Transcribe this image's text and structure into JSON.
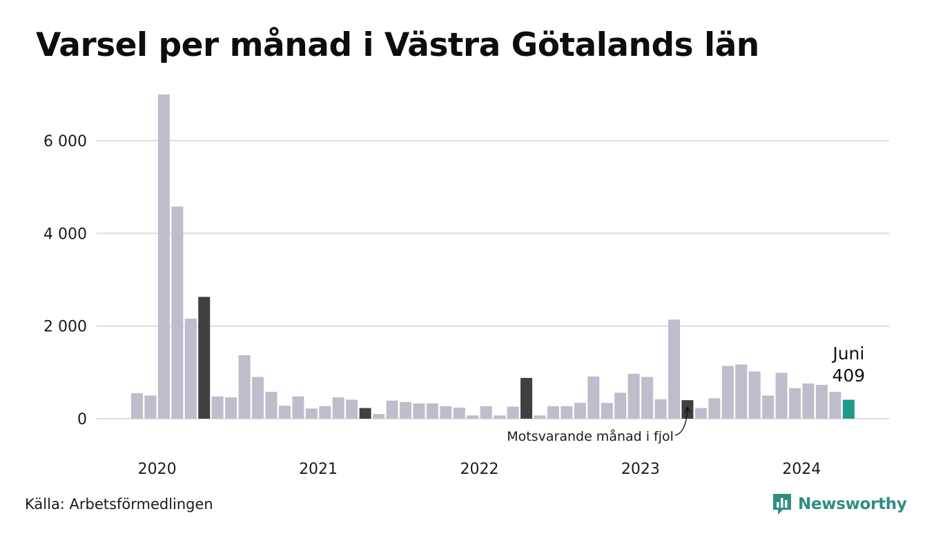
{
  "header": {
    "title": "Varsel per månad i Västra Götalands län"
  },
  "footer": {
    "source": "Källa: Arbetsförmedlingen",
    "brand": "Newsworthy"
  },
  "colors": {
    "bar": "#bfbccb",
    "same_month": "#404040",
    "highlight": "#1f9a8a",
    "grid": "#dcdcdc",
    "brand": "#2e8f80"
  },
  "icons": {
    "brand_logo": "bar-chart-speech-bubble-icon"
  },
  "chart_data": {
    "type": "bar",
    "title": "Varsel per månad i Västra Götalands län",
    "xlabel": "",
    "ylabel": "",
    "ylim": [
      0,
      7000
    ],
    "yticks": [
      0,
      2000,
      4000,
      6000
    ],
    "ytick_labels": [
      "0",
      "2 000",
      "4 000",
      "6 000"
    ],
    "xtick_labels": [
      {
        "label": "2020",
        "index": 1.5
      },
      {
        "label": "2021",
        "index": 13.5
      },
      {
        "label": "2022",
        "index": 25.5
      },
      {
        "label": "2023",
        "index": 37.5
      },
      {
        "label": "2024",
        "index": 49.5
      }
    ],
    "grid": true,
    "months": [
      "2020-01",
      "2020-02",
      "2020-03",
      "2020-04",
      "2020-05",
      "2020-06",
      "2020-07",
      "2020-08",
      "2020-09",
      "2020-10",
      "2020-11",
      "2020-12",
      "2021-01",
      "2021-02",
      "2021-03",
      "2021-04",
      "2021-05",
      "2021-06",
      "2021-07",
      "2021-08",
      "2021-09",
      "2021-10",
      "2021-11",
      "2021-12",
      "2022-01",
      "2022-02",
      "2022-03",
      "2022-04",
      "2022-05",
      "2022-06",
      "2022-07",
      "2022-08",
      "2022-09",
      "2022-10",
      "2022-11",
      "2022-12",
      "2023-01",
      "2023-02",
      "2023-03",
      "2023-04",
      "2023-05",
      "2023-06",
      "2023-07",
      "2023-08",
      "2023-09",
      "2023-10",
      "2023-11",
      "2023-12",
      "2024-01",
      "2024-02",
      "2024-03",
      "2024-04",
      "2024-05",
      "2024-06"
    ],
    "values": [
      550,
      500,
      7000,
      4580,
      2160,
      2630,
      480,
      460,
      1370,
      900,
      580,
      280,
      480,
      220,
      270,
      460,
      410,
      230,
      100,
      390,
      360,
      330,
      330,
      270,
      240,
      70,
      270,
      70,
      260,
      880,
      70,
      270,
      270,
      340,
      910,
      340,
      560,
      970,
      900,
      420,
      2140,
      400,
      230,
      440,
      1140,
      1170,
      1020,
      500,
      990,
      660,
      760,
      730,
      580,
      409
    ],
    "same_month_indices": [
      5,
      17,
      29,
      41
    ],
    "highlight_index": 53,
    "labels": {
      "highlight_month": "Juni",
      "highlight_value": "409",
      "same_month_note": "Motsvarande månad i fjol"
    }
  }
}
